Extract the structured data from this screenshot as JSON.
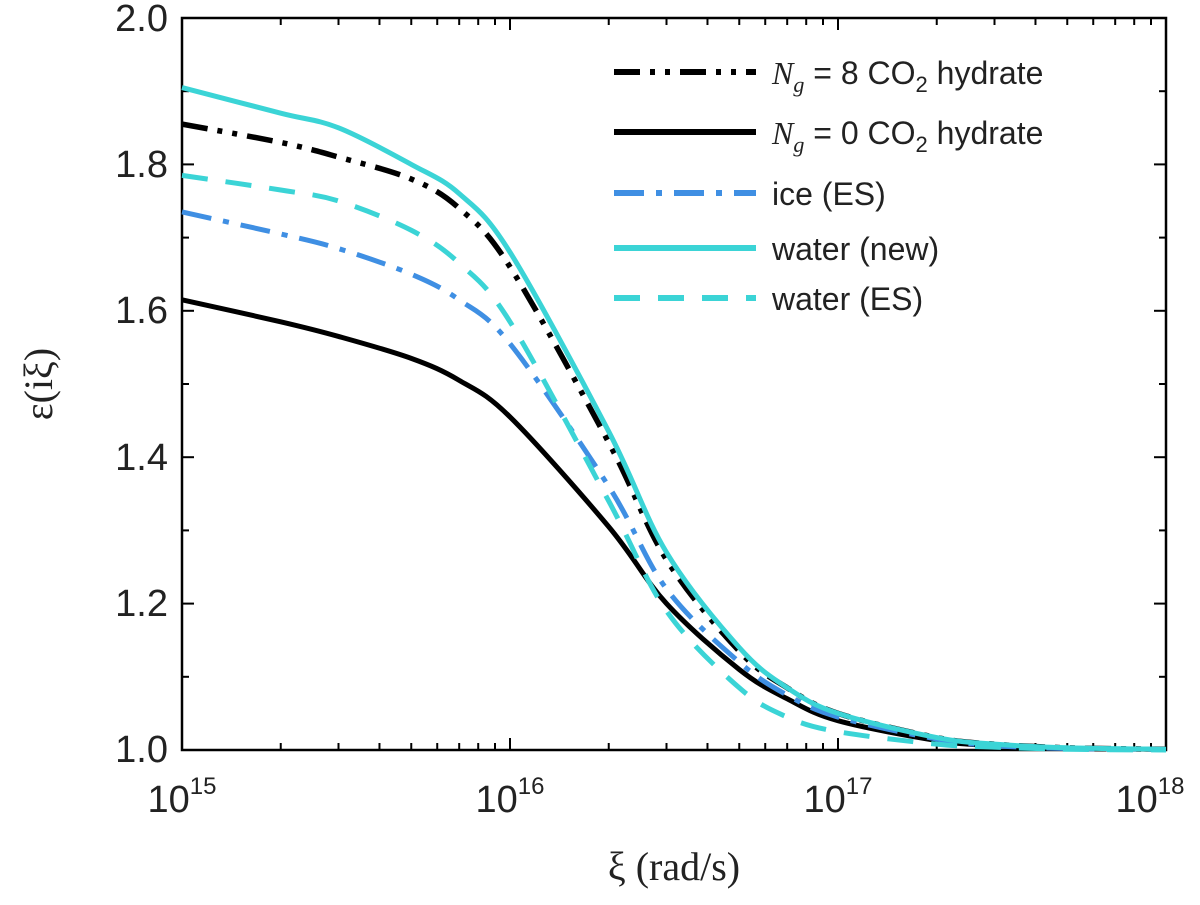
{
  "chart_data": {
    "type": "line",
    "xscale": "log",
    "xlim": [
      1000000000000000.0,
      1e+18
    ],
    "ylim": [
      1.0,
      2.0
    ],
    "grid": false,
    "legend_position": "top-right",
    "xlabel": "ξ (rad/s)",
    "ylabel": "ε(iξ)",
    "x_ticks": [
      {
        "base": "10",
        "exp": "15"
      },
      {
        "base": "10",
        "exp": "16"
      },
      {
        "base": "10",
        "exp": "17"
      },
      {
        "base": "10",
        "exp": "18"
      }
    ],
    "y_ticks": [
      "1.0",
      "1.2",
      "1.4",
      "1.6",
      "1.8",
      "2.0"
    ],
    "x": [
      1000000000000000.0,
      2000000000000000.0,
      3000000000000000.0,
      5000000000000000.0,
      7000000000000000.0,
      1e+16,
      2e+16,
      3e+16,
      5e+16,
      7e+16,
      1e+17,
      2e+17,
      3e+17,
      5e+17,
      1e+18
    ],
    "series": [
      {
        "label_var": "N",
        "label_sub": "g",
        "label_rest": " = 8 CO",
        "label_sub2": "2",
        "label_tail": " hydrate",
        "color": "#000000",
        "dash": "dashdotdot",
        "values": [
          1.855,
          1.83,
          1.81,
          1.78,
          1.74,
          1.66,
          1.42,
          1.26,
          1.135,
          1.085,
          1.05,
          1.017,
          1.008,
          1.003,
          1.001
        ]
      },
      {
        "label_var": "N",
        "label_sub": "g",
        "label_rest": " = 0 CO",
        "label_sub2": "2",
        "label_tail": " hydrate",
        "color": "#000000",
        "dash": "solid",
        "values": [
          1.615,
          1.585,
          1.565,
          1.535,
          1.505,
          1.455,
          1.305,
          1.2,
          1.11,
          1.07,
          1.04,
          1.013,
          1.006,
          1.002,
          1.001
        ]
      },
      {
        "label": "ice (ES)",
        "color": "#3f8fe3",
        "dash": "dashdot",
        "values": [
          1.735,
          1.705,
          1.685,
          1.65,
          1.615,
          1.555,
          1.36,
          1.22,
          1.12,
          1.075,
          1.045,
          1.015,
          1.006,
          1.002,
          1.001
        ]
      },
      {
        "label": "water (new)",
        "color": "#3bd4d6",
        "dash": "solid",
        "values": [
          1.905,
          1.87,
          1.85,
          1.8,
          1.76,
          1.68,
          1.435,
          1.27,
          1.14,
          1.085,
          1.05,
          1.017,
          1.008,
          1.003,
          1.001
        ]
      },
      {
        "label": "water (ES)",
        "color": "#3bd4d6",
        "dash": "dashed",
        "values": [
          1.785,
          1.765,
          1.75,
          1.71,
          1.665,
          1.585,
          1.34,
          1.19,
          1.085,
          1.045,
          1.025,
          1.008,
          1.004,
          1.001,
          1.0
        ]
      }
    ]
  }
}
